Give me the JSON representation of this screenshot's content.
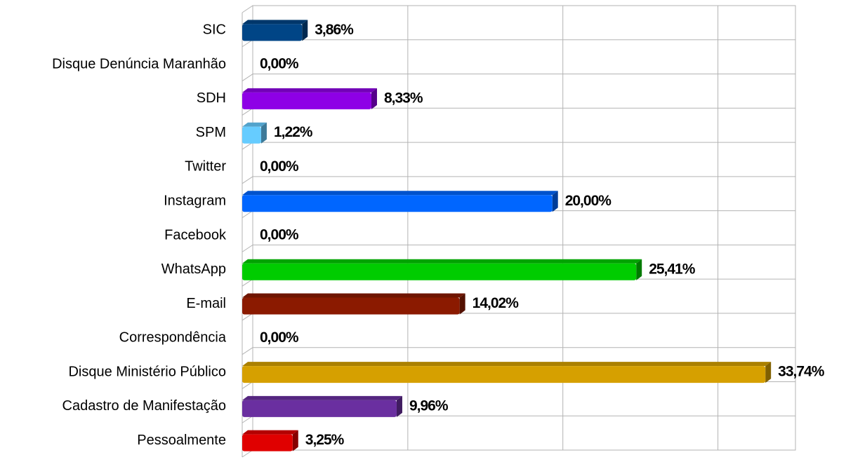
{
  "chart_data": {
    "type": "bar",
    "orientation": "horizontal",
    "categories": [
      "SIC",
      "Disque Denúncia Maranhão",
      "SDH",
      "SPM",
      "Twitter",
      "Instagram",
      "Facebook",
      "WhatsApp",
      "E-mail",
      "Correspondência",
      "Disque Ministério Público",
      "Cadastro de Manifestação",
      "Pessoalmente"
    ],
    "values": [
      3.86,
      0,
      8.33,
      1.22,
      0,
      20,
      0,
      25.41,
      14.02,
      0,
      33.74,
      9.96,
      3.25
    ],
    "value_labels": [
      "3,86%",
      "0,00%",
      "8,33%",
      "1,22%",
      "0,00%",
      "20,00%",
      "0,00%",
      "25,41%",
      "14,02%",
      "0,00%",
      "33,74%",
      "9,96%",
      "3,25%"
    ],
    "colors": [
      "#004586",
      "#ff420e",
      "#8e00e6",
      "#66ccff",
      "#7e0021",
      "#0066ff",
      "#314004",
      "#00cc00",
      "#8b1a00",
      "#c5000b",
      "#d6a000",
      "#6a2fa0",
      "#e00000"
    ],
    "xlim": [
      0,
      35
    ],
    "xticks": [
      0,
      10,
      20,
      30
    ],
    "grid": true
  }
}
